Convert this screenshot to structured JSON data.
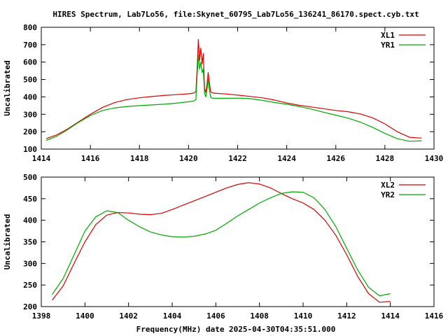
{
  "page": {
    "title": "HIRES Spectrum, Lab7Lo56, file:Skynet_60795_Lab7Lo56_136241_86170.spect.cyb.txt",
    "xlabel": "Frequency(MHz) date 2025-04-30T04:35:51.000"
  },
  "chart_data": [
    {
      "type": "line",
      "title": "HIRES Spectrum, Lab7Lo56, file:Skynet_60795_Lab7Lo56_136241_86170.spect.cyb.txt",
      "ylabel": "Uncalibrated",
      "xlabel": "",
      "xlim": [
        1414,
        1430
      ],
      "ylim": [
        100,
        800
      ],
      "xticks": [
        1414,
        1416,
        1418,
        1420,
        1422,
        1424,
        1426,
        1428,
        1430
      ],
      "yticks": [
        100,
        200,
        300,
        400,
        500,
        600,
        700,
        800
      ],
      "legend": "top-right",
      "grid": false,
      "series": [
        {
          "name": "XL1",
          "color": "#dd0000",
          "x": [
            1414.2,
            1414.6,
            1415.0,
            1415.5,
            1416.0,
            1416.5,
            1417.0,
            1417.5,
            1418.0,
            1418.5,
            1419.0,
            1419.5,
            1420.0,
            1420.2,
            1420.3,
            1420.35,
            1420.4,
            1420.45,
            1420.5,
            1420.55,
            1420.6,
            1420.65,
            1420.7,
            1420.75,
            1420.8,
            1420.85,
            1420.9,
            1420.95,
            1421.0,
            1421.2,
            1421.5,
            1422.0,
            1422.5,
            1423.0,
            1423.5,
            1424.0,
            1424.5,
            1425.0,
            1425.5,
            1426.0,
            1426.5,
            1427.0,
            1427.5,
            1428.0,
            1428.5,
            1429.0,
            1429.5
          ],
          "y": [
            160,
            180,
            210,
            255,
            300,
            340,
            368,
            385,
            395,
            402,
            408,
            413,
            418,
            422,
            430,
            560,
            730,
            610,
            680,
            590,
            650,
            450,
            425,
            470,
            540,
            480,
            430,
            425,
            422,
            420,
            417,
            410,
            403,
            395,
            382,
            365,
            352,
            342,
            332,
            322,
            315,
            302,
            280,
            245,
            200,
            168,
            163
          ]
        },
        {
          "name": "YR1",
          "color": "#00aa00",
          "x": [
            1414.2,
            1414.6,
            1415.0,
            1415.5,
            1416.0,
            1416.5,
            1417.0,
            1417.5,
            1418.0,
            1418.5,
            1419.0,
            1419.5,
            1420.0,
            1420.2,
            1420.3,
            1420.35,
            1420.4,
            1420.45,
            1420.5,
            1420.55,
            1420.6,
            1420.65,
            1420.7,
            1420.75,
            1420.8,
            1420.85,
            1420.9,
            1420.95,
            1421.0,
            1421.2,
            1421.5,
            1422.0,
            1422.5,
            1423.0,
            1423.5,
            1424.0,
            1424.5,
            1425.0,
            1425.5,
            1426.0,
            1426.5,
            1427.0,
            1427.5,
            1428.0,
            1428.5,
            1429.0,
            1429.5
          ],
          "y": [
            150,
            172,
            205,
            252,
            293,
            322,
            337,
            345,
            350,
            354,
            358,
            364,
            372,
            376,
            385,
            520,
            640,
            560,
            600,
            540,
            560,
            420,
            400,
            440,
            500,
            440,
            398,
            394,
            392,
            392,
            392,
            393,
            390,
            380,
            368,
            358,
            345,
            330,
            312,
            295,
            278,
            255,
            225,
            190,
            160,
            145,
            148
          ]
        }
      ]
    },
    {
      "type": "line",
      "title": "",
      "ylabel": "Uncalibrated",
      "xlabel": "Frequency(MHz) date 2025-04-30T04:35:51.000",
      "xlim": [
        1398,
        1416
      ],
      "ylim": [
        200,
        500
      ],
      "xticks": [
        1398,
        1400,
        1402,
        1404,
        1406,
        1408,
        1410,
        1412,
        1414,
        1416
      ],
      "yticks": [
        200,
        250,
        300,
        350,
        400,
        450,
        500
      ],
      "legend": "top-right",
      "grid": false,
      "series": [
        {
          "name": "XL2",
          "color": "#dd0000",
          "x": [
            1398.5,
            1399.0,
            1399.5,
            1400.0,
            1400.5,
            1401.0,
            1401.5,
            1402.0,
            1402.5,
            1403.0,
            1403.5,
            1404.0,
            1404.5,
            1405.0,
            1405.5,
            1406.0,
            1406.5,
            1407.0,
            1407.5,
            1408.0,
            1408.5,
            1409.0,
            1409.5,
            1410.0,
            1410.5,
            1411.0,
            1411.5,
            1412.0,
            1412.5,
            1413.0,
            1413.5,
            1414.0
          ],
          "y": [
            215,
            248,
            300,
            350,
            390,
            412,
            418,
            417,
            414,
            413,
            416,
            425,
            435,
            445,
            455,
            465,
            475,
            483,
            487,
            484,
            475,
            462,
            450,
            440,
            425,
            400,
            365,
            320,
            270,
            230,
            210,
            212
          ]
        },
        {
          "name": "YR2",
          "color": "#00aa00",
          "x": [
            1398.5,
            1399.0,
            1399.5,
            1400.0,
            1400.5,
            1401.0,
            1401.5,
            1402.0,
            1402.5,
            1403.0,
            1403.5,
            1404.0,
            1404.5,
            1405.0,
            1405.5,
            1406.0,
            1406.5,
            1407.0,
            1407.5,
            1408.0,
            1408.5,
            1409.0,
            1409.5,
            1410.0,
            1410.5,
            1411.0,
            1411.5,
            1412.0,
            1412.5,
            1413.0,
            1413.5,
            1414.0
          ],
          "y": [
            228,
            265,
            320,
            375,
            408,
            422,
            418,
            400,
            385,
            373,
            366,
            362,
            361,
            363,
            368,
            377,
            393,
            410,
            425,
            440,
            452,
            462,
            466,
            465,
            452,
            425,
            385,
            335,
            285,
            245,
            225,
            230
          ]
        }
      ]
    }
  ]
}
